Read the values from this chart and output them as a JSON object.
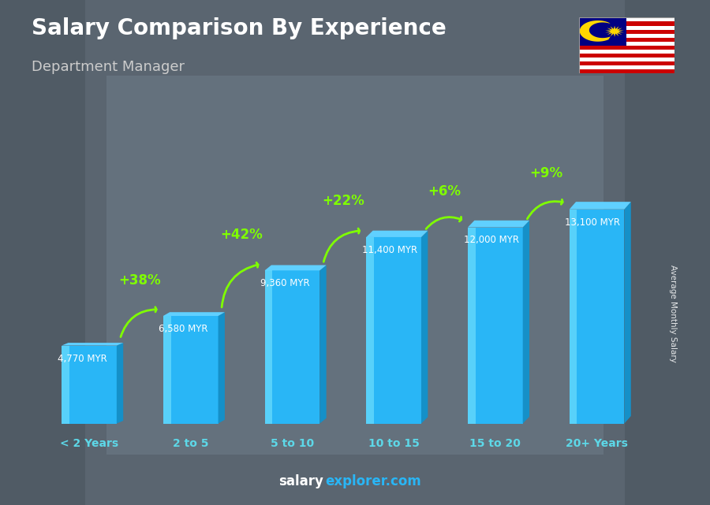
{
  "title": "Salary Comparison By Experience",
  "subtitle": "Department Manager",
  "categories": [
    "< 2 Years",
    "2 to 5",
    "5 to 10",
    "10 to 15",
    "15 to 20",
    "20+ Years"
  ],
  "values": [
    4770,
    6580,
    9360,
    11400,
    12000,
    13100
  ],
  "bar_face_color": "#29b6f6",
  "bar_side_color": "#1590c8",
  "bar_top_color": "#60d0ff",
  "bar_shine_color": "#80e8ff",
  "ylabel": "Average Monthly Salary",
  "bg_color": "#6b7b8a",
  "title_color": "#ffffff",
  "subtitle_color": "#cccccc",
  "xlabel_color": "#5dd8e8",
  "value_label_color": "#ffffff",
  "value_labels": [
    "4,770 MYR",
    "6,580 MYR",
    "9,360 MYR",
    "11,400 MYR",
    "12,000 MYR",
    "13,100 MYR"
  ],
  "pct_labels": [
    "+38%",
    "+42%",
    "+22%",
    "+6%",
    "+9%"
  ],
  "arrow_color": "#7fff00",
  "watermark_salary_color": "#ffffff",
  "watermark_explorer_color": "#29b6f6",
  "flag_stripe_red": "#CC0001",
  "flag_blue": "#010082",
  "flag_yellow": "#FFD700"
}
